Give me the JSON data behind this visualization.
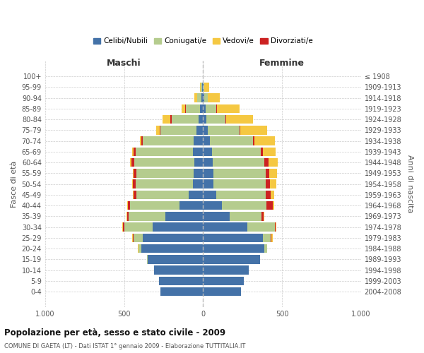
{
  "age_groups": [
    "0-4",
    "5-9",
    "10-14",
    "15-19",
    "20-24",
    "25-29",
    "30-34",
    "35-39",
    "40-44",
    "45-49",
    "50-54",
    "55-59",
    "60-64",
    "65-69",
    "70-74",
    "75-79",
    "80-84",
    "85-89",
    "90-94",
    "95-99",
    "100+"
  ],
  "year_labels": [
    "2004-2008",
    "1999-2003",
    "1994-1998",
    "1989-1993",
    "1984-1988",
    "1979-1983",
    "1974-1978",
    "1969-1973",
    "1964-1968",
    "1959-1963",
    "1954-1958",
    "1949-1953",
    "1944-1948",
    "1939-1943",
    "1934-1938",
    "1929-1933",
    "1924-1928",
    "1919-1923",
    "1914-1918",
    "1909-1913",
    "≤ 1908"
  ],
  "males": {
    "celibi": [
      270,
      280,
      310,
      350,
      390,
      380,
      320,
      240,
      150,
      90,
      65,
      60,
      55,
      65,
      60,
      40,
      30,
      20,
      8,
      5,
      0
    ],
    "coniugati": [
      0,
      0,
      0,
      5,
      20,
      60,
      180,
      230,
      310,
      330,
      360,
      360,
      380,
      360,
      320,
      230,
      170,
      90,
      30,
      10,
      0
    ],
    "vedovi": [
      0,
      0,
      0,
      0,
      5,
      5,
      5,
      5,
      5,
      5,
      5,
      5,
      5,
      8,
      10,
      20,
      50,
      20,
      15,
      5,
      0
    ],
    "divorziati": [
      0,
      0,
      0,
      0,
      0,
      5,
      5,
      10,
      15,
      20,
      20,
      20,
      20,
      15,
      10,
      5,
      5,
      5,
      0,
      0,
      0
    ]
  },
  "females": {
    "nubili": [
      240,
      260,
      290,
      360,
      390,
      380,
      280,
      170,
      120,
      85,
      65,
      65,
      60,
      55,
      45,
      30,
      20,
      15,
      8,
      5,
      0
    ],
    "coniugate": [
      0,
      0,
      0,
      3,
      15,
      50,
      175,
      200,
      280,
      310,
      330,
      330,
      330,
      310,
      270,
      200,
      120,
      70,
      20,
      5,
      0
    ],
    "vedove": [
      0,
      0,
      0,
      0,
      0,
      5,
      5,
      5,
      10,
      20,
      40,
      50,
      60,
      80,
      130,
      170,
      170,
      140,
      80,
      30,
      0
    ],
    "divorziate": [
      0,
      0,
      0,
      0,
      0,
      5,
      5,
      15,
      40,
      35,
      30,
      25,
      25,
      15,
      10,
      5,
      5,
      5,
      0,
      0,
      0
    ]
  },
  "colors": {
    "celibi": "#4472a8",
    "coniugati": "#b5cc8e",
    "vedovi": "#f5c842",
    "divorziati": "#cc2222"
  },
  "title": "Popolazione per età, sesso e stato civile - 2009",
  "subtitle": "COMUNE DI GAETA (LT) - Dati ISTAT 1° gennaio 2009 - Elaborazione TUTTITALIA.IT",
  "xlabel_left": "Maschi",
  "xlabel_right": "Femmine",
  "ylabel_left": "Fasce di età",
  "ylabel_right": "Anni di nascita",
  "xlim": 1000,
  "legend_labels": [
    "Celibi/Nubili",
    "Coniugati/e",
    "Vedovi/e",
    "Divorziati/e"
  ]
}
